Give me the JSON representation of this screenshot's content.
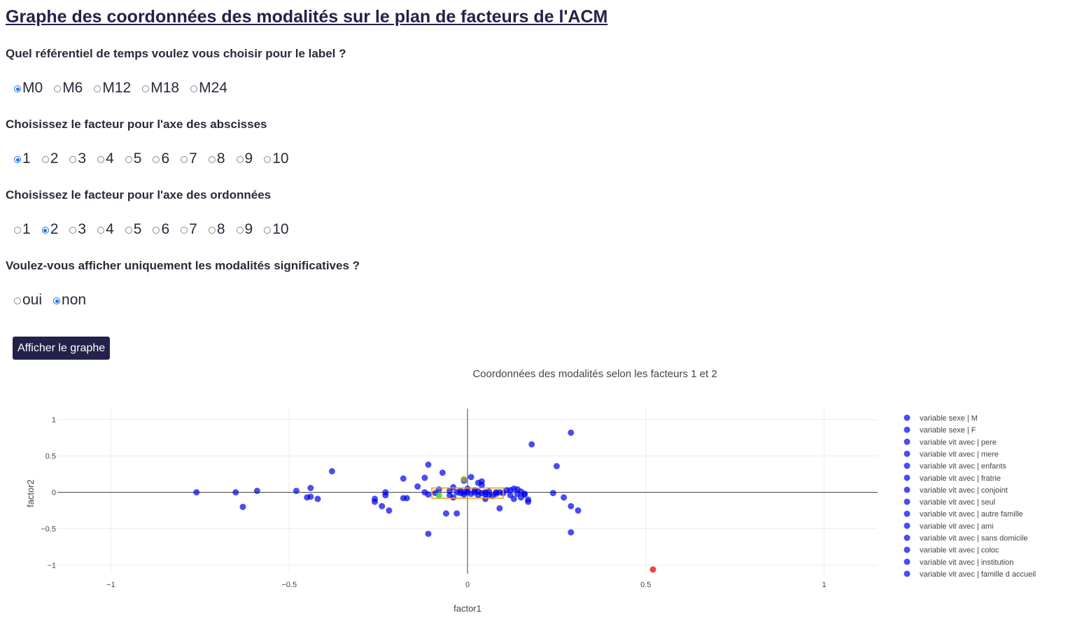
{
  "page": {
    "title": "Graphe des coordonnées des modalités sur le plan de facteurs de l'ACM"
  },
  "q_time": {
    "label": "Quel référentiel de temps voulez vous choisir pour le label ?",
    "options": [
      "M0",
      "M6",
      "M12",
      "M18",
      "M24"
    ],
    "selected": "M0"
  },
  "q_x": {
    "label": "Choisissez le facteur pour l'axe des abscisses",
    "options": [
      "1",
      "2",
      "3",
      "4",
      "5",
      "6",
      "7",
      "8",
      "9",
      "10"
    ],
    "selected": "1"
  },
  "q_y": {
    "label": "Choisissez le facteur pour l'axe des ordonnées",
    "options": [
      "1",
      "2",
      "3",
      "4",
      "5",
      "6",
      "7",
      "8",
      "9",
      "10"
    ],
    "selected": "2"
  },
  "q_sig": {
    "label": "Voulez-vous afficher uniquement les modalités significatives ?",
    "options": [
      "oui",
      "non"
    ],
    "selected": "non"
  },
  "button": {
    "label": "Afficher le graphe"
  },
  "colors": {
    "point": "#0000ee",
    "highlight_red": "#ee2222",
    "highlight_olive": "#a89a30",
    "highlight_green": "#44cc44",
    "box": "#ff9900"
  },
  "chart_data": {
    "type": "scatter",
    "title": "Coordonnées des modalités selon les facteurs 1 et 2",
    "xlabel": "factor1",
    "ylabel": "factor2",
    "xlim": [
      -1.15,
      1.15
    ],
    "ylim": [
      -1.12,
      1.15
    ],
    "xticks": [
      -1,
      -0.5,
      0,
      0.5,
      1
    ],
    "xtick_labels": [
      "−1",
      "−0.5",
      "0",
      "0.5",
      "1"
    ],
    "yticks": [
      -1,
      -0.5,
      0,
      0.5,
      1
    ],
    "ytick_labels": [
      "−1",
      "−0.5",
      "0",
      "0.5",
      "1"
    ],
    "grid": true,
    "legend_position": "right",
    "legend": [
      "variable sexe | M",
      "variable sexe | F",
      "variable vit avec | pere",
      "variable vit avec | mere",
      "variable vit avec | enfants",
      "variable vit avec | fratrie",
      "variable vit avec | conjoint",
      "variable vit avec | seul",
      "variable vit avec | autre famille",
      "variable vit avec | ami",
      "variable vit avec | sans domicile",
      "variable vit avec | coloc",
      "variable vit avec | institution",
      "variable vit avec | famille d accueil"
    ],
    "points": [
      [
        -0.76,
        0.0
      ],
      [
        -0.65,
        0.0
      ],
      [
        -0.63,
        -0.2
      ],
      [
        -0.59,
        0.02
      ],
      [
        -0.48,
        0.02
      ],
      [
        -0.45,
        -0.07
      ],
      [
        -0.44,
        0.06
      ],
      [
        -0.44,
        -0.06
      ],
      [
        -0.42,
        -0.09
      ],
      [
        -0.38,
        0.29
      ],
      [
        -0.26,
        -0.09
      ],
      [
        -0.26,
        -0.13
      ],
      [
        -0.24,
        -0.19
      ],
      [
        -0.23,
        0.0
      ],
      [
        -0.23,
        -0.04
      ],
      [
        -0.22,
        -0.25
      ],
      [
        -0.18,
        0.19
      ],
      [
        -0.18,
        -0.08
      ],
      [
        -0.17,
        -0.08
      ],
      [
        -0.14,
        0.08
      ],
      [
        -0.12,
        0.0
      ],
      [
        -0.12,
        0.2
      ],
      [
        -0.11,
        0.38
      ],
      [
        -0.11,
        -0.03
      ],
      [
        -0.11,
        -0.57
      ],
      [
        -0.09,
        -0.01
      ],
      [
        -0.08,
        0.04
      ],
      [
        -0.07,
        0.27
      ],
      [
        -0.06,
        -0.29
      ],
      [
        -0.05,
        0.02
      ],
      [
        -0.05,
        -0.04
      ],
      [
        -0.04,
        0.07
      ],
      [
        -0.04,
        -0.07
      ],
      [
        -0.03,
        -0.29
      ],
      [
        -0.03,
        0.0
      ],
      [
        -0.02,
        0.02
      ],
      [
        -0.02,
        -0.01
      ],
      [
        -0.01,
        0.0
      ],
      [
        -0.01,
        0.16
      ],
      [
        -0.01,
        -0.03
      ],
      [
        0.0,
        0.0
      ],
      [
        0.0,
        0.05
      ],
      [
        0.01,
        0.21
      ],
      [
        0.01,
        -0.02
      ],
      [
        0.02,
        0.0
      ],
      [
        0.02,
        0.03
      ],
      [
        0.03,
        -0.04
      ],
      [
        0.03,
        0.01
      ],
      [
        0.03,
        0.13
      ],
      [
        0.04,
        0.1
      ],
      [
        0.04,
        -0.01
      ],
      [
        0.04,
        0.15
      ],
      [
        0.05,
        -0.02
      ],
      [
        0.05,
        0.0
      ],
      [
        0.05,
        -0.09
      ],
      [
        0.06,
        -0.03
      ],
      [
        0.06,
        0.01
      ],
      [
        0.07,
        -0.05
      ],
      [
        0.08,
        0.0
      ],
      [
        0.08,
        -0.02
      ],
      [
        0.09,
        -0.22
      ],
      [
        0.09,
        0.0
      ],
      [
        0.1,
        -0.01
      ],
      [
        0.11,
        0.03
      ],
      [
        0.12,
        0.03
      ],
      [
        0.12,
        -0.04
      ],
      [
        0.13,
        0.05
      ],
      [
        0.13,
        -0.09
      ],
      [
        0.14,
        0.04
      ],
      [
        0.14,
        -0.02
      ],
      [
        0.15,
        0.01
      ],
      [
        0.15,
        -0.07
      ],
      [
        0.16,
        -0.02
      ],
      [
        0.16,
        -0.03
      ],
      [
        0.17,
        -0.13
      ],
      [
        0.17,
        -0.1
      ],
      [
        0.24,
        -0.01
      ],
      [
        0.25,
        0.36
      ],
      [
        0.27,
        -0.07
      ],
      [
        0.29,
        0.82
      ],
      [
        0.29,
        -0.55
      ],
      [
        0.29,
        -0.19
      ],
      [
        0.31,
        -0.25
      ],
      [
        0.18,
        0.66
      ]
    ],
    "highlight_points": [
      {
        "x": 0.52,
        "y": -1.06,
        "color_key": "highlight_red"
      },
      {
        "x": -0.01,
        "y": 0.18,
        "color_key": "highlight_olive"
      },
      {
        "x": -0.08,
        "y": -0.04,
        "color_key": "highlight_green"
      }
    ],
    "highlight_box": {
      "x0": -0.1,
      "x1": 0.1,
      "y0": -0.08,
      "y1": 0.06
    }
  }
}
